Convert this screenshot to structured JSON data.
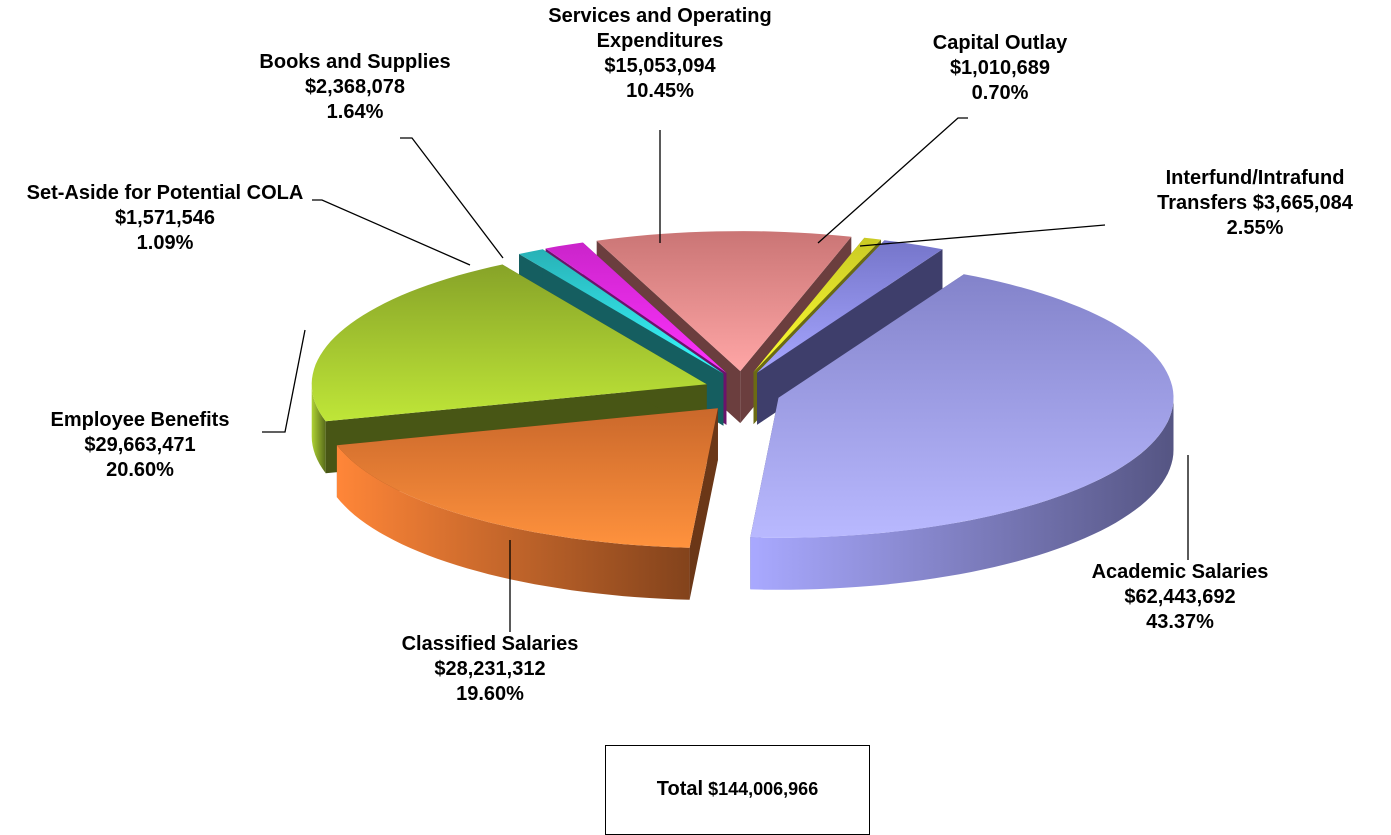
{
  "chart_data": {
    "type": "pie3d",
    "categories": [
      "Academic Salaries",
      "Classified Salaries",
      "Employee Benefits",
      "Set-Aside for Potential COLA",
      "Books and Supplies",
      "Services and Operating Expenditures",
      "Capital Outlay",
      "Interfund/Intrafund Transfers"
    ],
    "values": [
      62443692,
      28231312,
      29663471,
      1571546,
      2368078,
      15053094,
      1010689,
      3665084
    ],
    "value_labels": [
      "$62,443,692",
      "$28,231,312",
      "$29,663,471",
      "$1,571,546",
      "$2,368,078",
      "$15,053,094",
      "$1,010,689",
      "$3,665,084"
    ],
    "percentages": [
      43.37,
      19.6,
      20.6,
      1.09,
      1.64,
      10.45,
      0.7,
      2.55
    ],
    "percent_labels": [
      "43.37%",
      "19.60%",
      "20.60%",
      "1.09%",
      "1.64%",
      "10.45%",
      "0.70%",
      "2.55%"
    ],
    "colors": [
      "#9a9aee",
      "#ee7a33",
      "#9fc02f",
      "#2fd0d6",
      "#ee2aee",
      "#ee8a8a",
      "#eeee2a",
      "#8a8aee"
    ],
    "total_label": "Total",
    "total": 144006966,
    "total_value_label": "$144,006,966"
  }
}
